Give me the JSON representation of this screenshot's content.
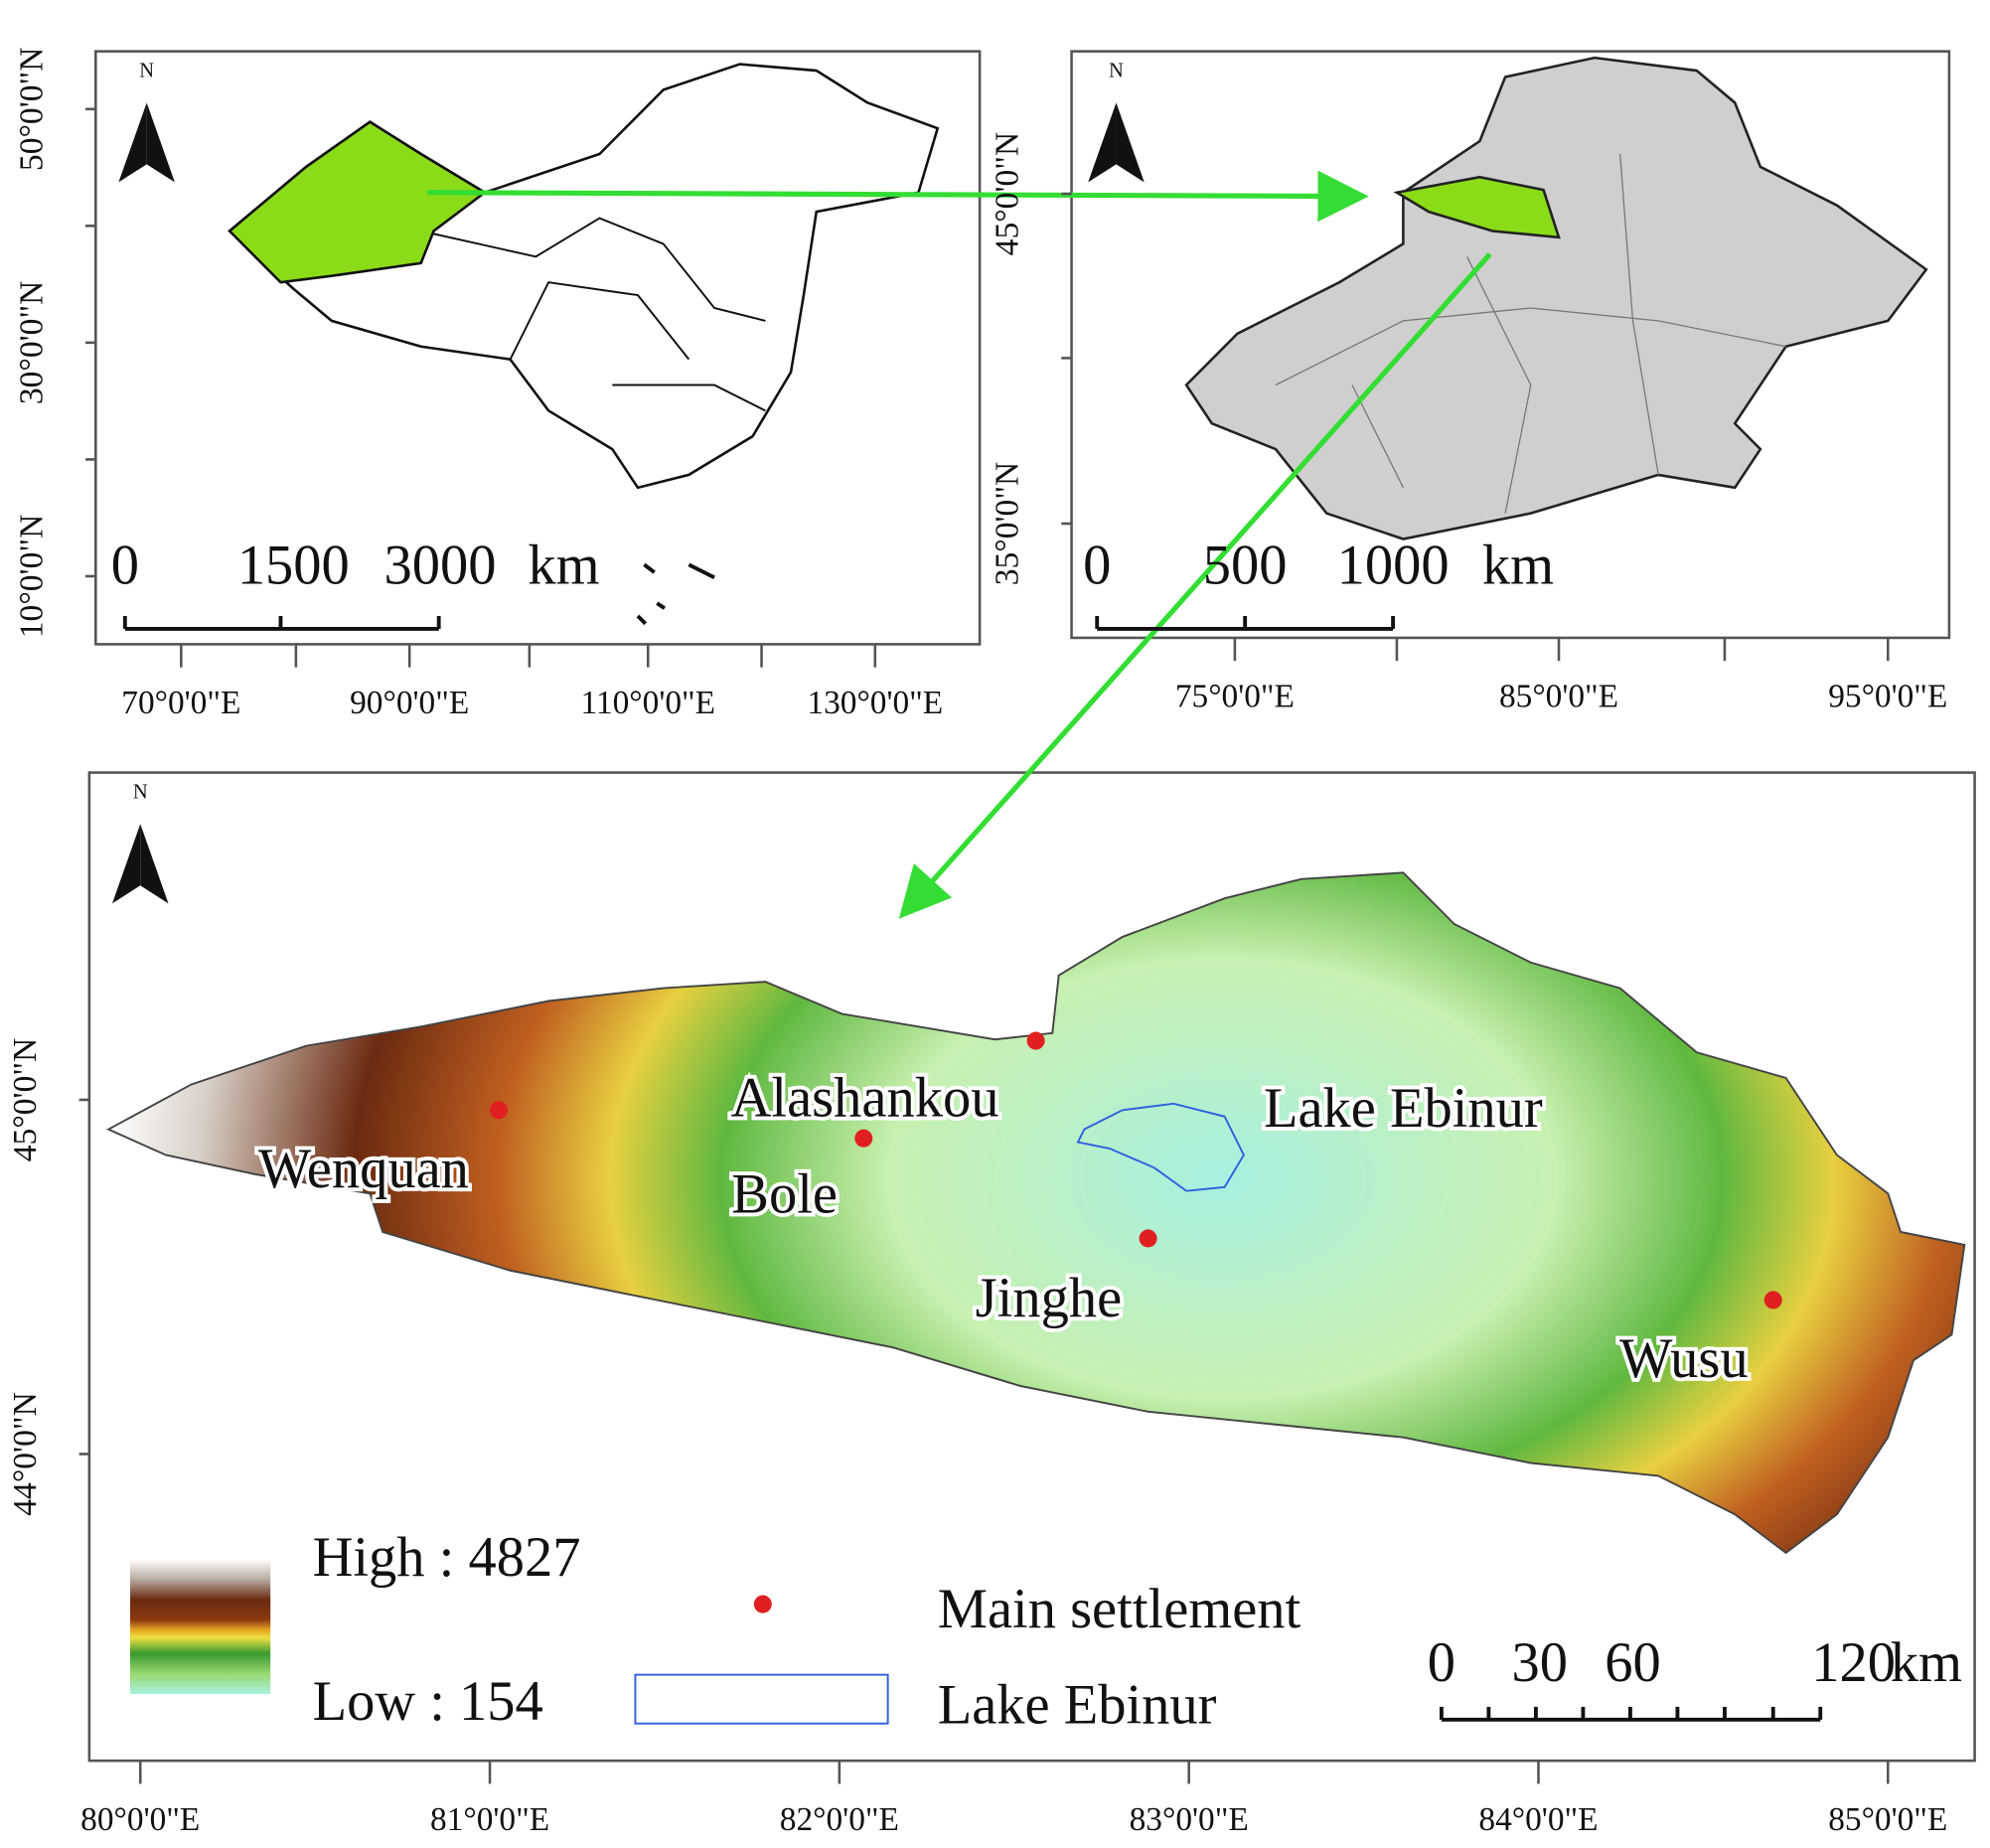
{
  "panels": [
    {
      "north": "N",
      "y_ticks": [
        "50°0'0\"N",
        "30°0'0\"N",
        "10°0'0\"N"
      ],
      "x_ticks": [
        "70°0'0\"E",
        "90°0'0\"E",
        "110°0'0\"E",
        "130°0'0\"E"
      ],
      "scale_bar": {
        "labels": [
          "0",
          "1500",
          "3000"
        ],
        "unit": "km"
      }
    },
    {
      "north": "N",
      "y_ticks": [
        "45°0'0\"N",
        "35°0'0\"N"
      ],
      "x_ticks": [
        "75°0'0\"E",
        "85°0'0\"E",
        "95°0'0\"E"
      ],
      "scale_bar": {
        "labels": [
          "0",
          "500",
          "1000"
        ],
        "unit": "km"
      }
    },
    {
      "north": "N",
      "y_ticks": [
        "45°0'0\"N",
        "44°0'0\"N"
      ],
      "x_ticks": [
        "80°0'0\"E",
        "81°0'0\"E",
        "82°0'0\"E",
        "83°0'0\"E",
        "84°0'0\"E",
        "85°0'0\"E"
      ],
      "scale_bar": {
        "labels": [
          "0",
          "30",
          "60",
          "120"
        ],
        "unit": "km"
      },
      "places": [
        "Wenquan",
        "Alashankou",
        "Bole",
        "Lake Ebinur",
        "Jinghe",
        "Wusu"
      ],
      "legend": {
        "high": "High : 4827",
        "low": "Low : 154",
        "settlement": "Main settlement",
        "lake": "Lake Ebinur"
      }
    }
  ]
}
